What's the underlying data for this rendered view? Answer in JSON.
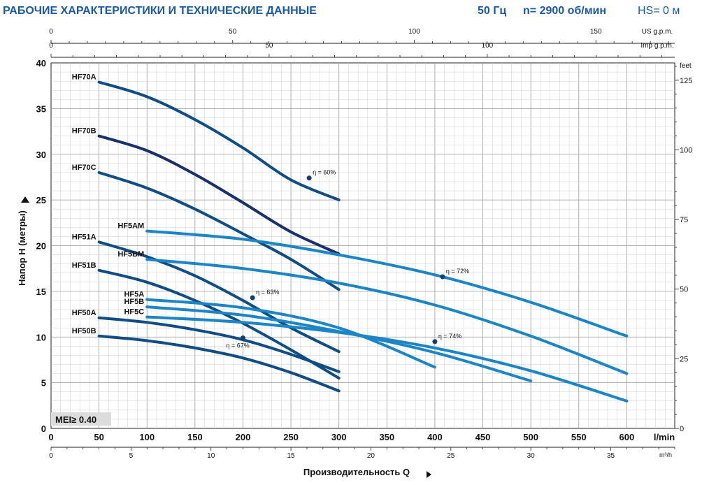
{
  "header": {
    "title": "РАБОЧИЕ ХАРАКТЕРИСТИКИ И ТЕХНИЧЕСКИЕ ДАННЫЕ",
    "frequency": "50 Гц",
    "speed": "n= 2900 об/мин",
    "hs": "HS= 0 м"
  },
  "colors": {
    "title": "#1b5aa3",
    "hf70": "#0f4d86",
    "hf70b": "#1a2f6e",
    "hf5x": "#1a86c8"
  },
  "mei_label": "MEI≥ 0.40",
  "chart_data": {
    "type": "line",
    "xlabel": "Производительность Q",
    "ylabel": "Напор H (метры)",
    "x_unit": "l/min",
    "xlim": [
      0,
      650
    ],
    "ylim": [
      0,
      40
    ],
    "grid": true,
    "x_ticks": [
      0,
      50,
      100,
      150,
      200,
      250,
      300,
      350,
      400,
      450,
      500,
      550,
      600
    ],
    "y_ticks": [
      0,
      5,
      10,
      15,
      20,
      25,
      30,
      35,
      40
    ],
    "x2_m3h_unit": "m³/h",
    "x2_m3h_ticks": [
      0,
      5,
      10,
      15,
      20,
      25,
      30,
      35
    ],
    "top_us": {
      "unit": "US g.p.m.",
      "ticks": [
        0,
        50,
        100,
        150
      ]
    },
    "top_imp": {
      "unit": "Imp g.p.m.",
      "ticks": [
        0,
        50,
        100
      ]
    },
    "right_feet": {
      "unit": "feet",
      "ticks": [
        0,
        25,
        50,
        75,
        100,
        125
      ]
    },
    "series": [
      {
        "name": "HF70A",
        "color_key": "hf70",
        "x": [
          50,
          100,
          150,
          200,
          250,
          300
        ],
        "y": [
          37.9,
          36.3,
          33.8,
          30.7,
          27.2,
          25.0
        ]
      },
      {
        "name": "HF70B",
        "color_key": "hf70b",
        "x": [
          50,
          100,
          150,
          200,
          250,
          300
        ],
        "y": [
          32.0,
          30.4,
          27.8,
          24.7,
          21.5,
          19.1
        ]
      },
      {
        "name": "HF70C",
        "color_key": "hf70",
        "x": [
          50,
          100,
          150,
          200,
          250,
          300
        ],
        "y": [
          28.0,
          26.3,
          24.0,
          21.3,
          18.5,
          15.2
        ]
      },
      {
        "name": "HF51A",
        "color_key": "hf70",
        "x": [
          50,
          100,
          150,
          200,
          250,
          300
        ],
        "y": [
          20.4,
          18.8,
          16.7,
          14.0,
          11.0,
          8.4
        ]
      },
      {
        "name": "HF51B",
        "color_key": "hf70",
        "x": [
          50,
          100,
          150,
          200,
          250,
          300
        ],
        "y": [
          17.3,
          16.0,
          14.0,
          11.5,
          8.6,
          5.5
        ]
      },
      {
        "name": "HF50A",
        "color_key": "hf70",
        "x": [
          50,
          100,
          150,
          200,
          250,
          300
        ],
        "y": [
          12.1,
          11.6,
          10.8,
          9.7,
          8.1,
          6.2
        ]
      },
      {
        "name": "HF50B",
        "color_key": "hf70",
        "x": [
          50,
          100,
          150,
          200,
          250,
          300
        ],
        "y": [
          10.1,
          9.6,
          8.8,
          7.7,
          6.1,
          4.1
        ]
      },
      {
        "name": "HF5AM",
        "color_key": "hf5x",
        "x": [
          100,
          200,
          300,
          400,
          500,
          600
        ],
        "y": [
          21.6,
          20.7,
          19.0,
          16.8,
          13.8,
          10.1
        ]
      },
      {
        "name": "HF5BM",
        "color_key": "hf5x",
        "x": [
          100,
          200,
          300,
          400,
          500,
          600
        ],
        "y": [
          18.5,
          17.5,
          15.9,
          13.5,
          10.1,
          6.0
        ]
      },
      {
        "name": "HF5A",
        "color_key": "hf5x",
        "x": [
          100,
          200,
          300,
          400
        ],
        "y": [
          14.1,
          13.2,
          11.0,
          6.7
        ]
      },
      {
        "name": "HF5B",
        "color_key": "hf5x",
        "x": [
          100,
          200,
          300,
          400,
          500
        ],
        "y": [
          13.3,
          12.4,
          10.6,
          8.3,
          5.2
        ]
      },
      {
        "name": "HF5C",
        "color_key": "hf5x",
        "x": [
          100,
          200,
          300,
          400,
          500,
          600
        ],
        "y": [
          12.2,
          11.6,
          10.5,
          8.8,
          6.3,
          3.0
        ]
      }
    ],
    "annotations": [
      {
        "text": "η = 60%",
        "series": "HF70A",
        "x": 269,
        "y": 27.4
      },
      {
        "text": "η = 72%",
        "series": "HF5AM",
        "x": 408,
        "y": 16.6
      },
      {
        "text": "η = 63%",
        "series": "HF51A",
        "x": 210,
        "y": 14.3
      },
      {
        "text": "η = 74%",
        "series": "HF5BM",
        "x": 400,
        "y": 9.5
      },
      {
        "text": "η = 67%",
        "series": "HF50A",
        "x": 200,
        "y": 9.9
      }
    ]
  }
}
